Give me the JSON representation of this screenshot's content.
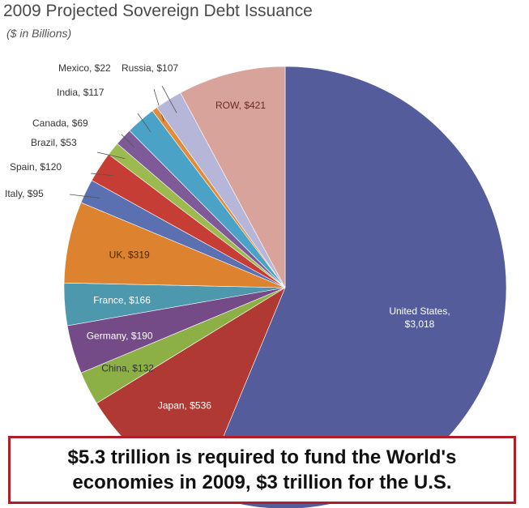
{
  "chart_data": {
    "type": "pie",
    "title": "2009 Projected Sovereign Debt Issuance",
    "subtitle": "($ in Billions)",
    "slices": [
      {
        "name": "United States",
        "value": 3018,
        "label": "United States, $3,018",
        "color": "#545c9c"
      },
      {
        "name": "Japan",
        "value": 536,
        "label": "Japan, $536",
        "color": "#b03a33"
      },
      {
        "name": "China",
        "value": 132,
        "label": "China, $132",
        "color": "#8db046"
      },
      {
        "name": "Germany",
        "value": 190,
        "label": "Germany, $190",
        "color": "#744b87"
      },
      {
        "name": "France",
        "value": 166,
        "label": "France, $166",
        "color": "#4d98ad"
      },
      {
        "name": "UK",
        "value": 319,
        "label": "UK, $319",
        "color": "#dd822e"
      },
      {
        "name": "Italy",
        "value": 95,
        "label": "Italy, $95",
        "color": "#5a70b0"
      },
      {
        "name": "Spain",
        "value": 120,
        "label": "Spain, $120",
        "color": "#c63d35"
      },
      {
        "name": "Brazil",
        "value": 53,
        "label": "Brazil, $53",
        "color": "#9cba50"
      },
      {
        "name": "Canada",
        "value": 69,
        "label": "Canada, $69",
        "color": "#7e5a98"
      },
      {
        "name": "India",
        "value": 117,
        "label": "India, $117",
        "color": "#4aa3c6"
      },
      {
        "name": "Mexico",
        "value": 22,
        "label": "Mexico, $22",
        "color": "#e28b3a"
      },
      {
        "name": "Russia",
        "value": 107,
        "label": "Russia, $107",
        "color": "#b5b6d8"
      },
      {
        "name": "ROW",
        "value": 421,
        "label": "ROW, $421",
        "color": "#d8a39b"
      }
    ]
  },
  "callout": {
    "line1": "$5.3 trillion is required to fund the World's",
    "line2": "economies in 2009, $3 trillion for the U.S."
  }
}
